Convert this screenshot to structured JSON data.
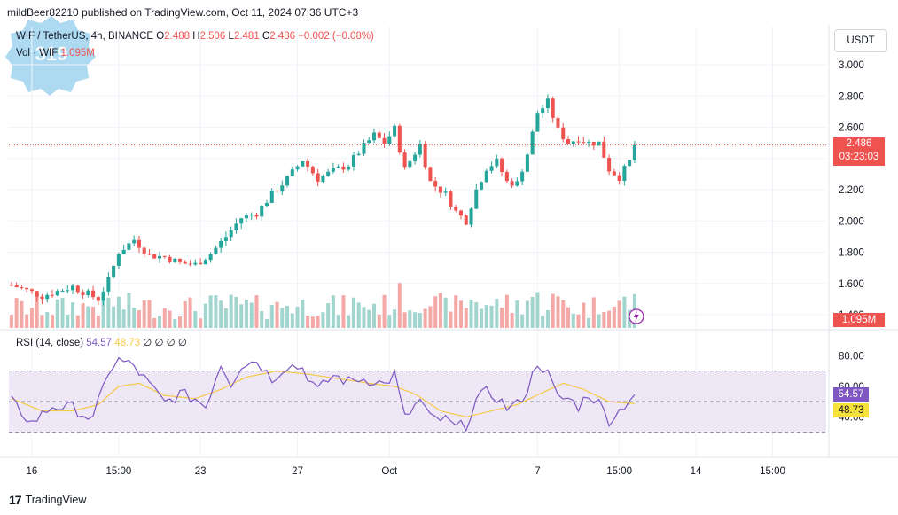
{
  "header": {
    "publisher": "mildBeer82210 published on TradingView.com, Oct 11, 2024 07:36 UTC+3"
  },
  "legend": {
    "symbol": "WIF / TetherUS, 4h, BINANCE",
    "open_label": "O",
    "open": "2.488",
    "high_label": "H",
    "high": "2.506",
    "low_label": "L",
    "low": "2.481",
    "close_label": "C",
    "close": "2.486",
    "change": "−0.002 (−0.08%)",
    "vol_label": "Vol · WIF",
    "vol_value": "1.095M"
  },
  "currency_button": "USDT",
  "price_tags": {
    "last_price": "2.486",
    "countdown": "03:23:03",
    "volume": "1.095M"
  },
  "rsi_legend": {
    "name": "RSI (14, close)",
    "rsi": "54.57",
    "ma": "48.73",
    "extras": "∅ ∅ ∅ ∅"
  },
  "rsi_tags": {
    "rsi": "54.57",
    "ma": "48.73"
  },
  "brand": {
    "logo": "17",
    "name": "TradingView"
  },
  "colors": {
    "up": "#26a69a",
    "down": "#ef5350",
    "rsi_line": "#7e57c2",
    "rsi_ma": "#f7c948",
    "rsi_band": "#ede7f6",
    "vol_up": "#a3d5cf",
    "vol_down": "#f4a9a6"
  },
  "chart_data": {
    "type": "candlestick",
    "symbol": "WIF / TetherUS",
    "interval": "4h",
    "y_ticks": [
      "3.000",
      "2.800",
      "2.600",
      "2.400",
      "2.200",
      "2.000",
      "1.800",
      "1.600",
      "1.400"
    ],
    "ylim": [
      1.4,
      3.0
    ],
    "x_ticks": [
      {
        "label": "16",
        "bar": 4
      },
      {
        "label": "15:00",
        "bar": 21
      },
      {
        "label": "23",
        "bar": 37
      },
      {
        "label": "27",
        "bar": 56
      },
      {
        "label": "Oct",
        "bar": 74
      },
      {
        "label": "7",
        "bar": 103
      },
      {
        "label": "15:00",
        "bar": 119
      },
      {
        "label": "14",
        "bar": 134
      },
      {
        "label": "15:00",
        "bar": 149
      }
    ],
    "close_waypoints": [
      [
        0,
        1.59
      ],
      [
        6,
        1.52
      ],
      [
        12,
        1.58
      ],
      [
        17,
        1.5
      ],
      [
        19,
        1.62
      ],
      [
        21,
        1.8
      ],
      [
        24,
        1.88
      ],
      [
        27,
        1.78
      ],
      [
        30,
        1.77
      ],
      [
        33,
        1.73
      ],
      [
        36,
        1.72
      ],
      [
        39,
        1.79
      ],
      [
        42,
        1.9
      ],
      [
        45,
        2.02
      ],
      [
        48,
        2.05
      ],
      [
        51,
        2.17
      ],
      [
        54,
        2.27
      ],
      [
        57,
        2.39
      ],
      [
        60,
        2.27
      ],
      [
        63,
        2.32
      ],
      [
        66,
        2.36
      ],
      [
        68,
        2.44
      ],
      [
        71,
        2.55
      ],
      [
        73,
        2.5
      ],
      [
        75,
        2.59
      ],
      [
        77,
        2.33
      ],
      [
        80,
        2.49
      ],
      [
        82,
        2.25
      ],
      [
        85,
        2.17
      ],
      [
        87,
        2.06
      ],
      [
        89,
        2.0
      ],
      [
        91,
        2.2
      ],
      [
        93,
        2.34
      ],
      [
        95,
        2.38
      ],
      [
        97,
        2.25
      ],
      [
        99,
        2.24
      ],
      [
        101,
        2.43
      ],
      [
        103,
        2.69
      ],
      [
        105,
        2.76
      ],
      [
        107,
        2.58
      ],
      [
        109,
        2.5
      ],
      [
        111,
        2.53
      ],
      [
        113,
        2.5
      ],
      [
        115,
        2.5
      ],
      [
        117,
        2.33
      ],
      [
        119,
        2.28
      ],
      [
        121,
        2.38
      ],
      [
        122,
        2.486
      ]
    ],
    "last_close": 2.486,
    "volume": {
      "last": "1.095M"
    },
    "rsi": {
      "ylim": [
        20,
        90
      ],
      "y_ticks": [
        "80.00",
        "60.00",
        "40.00"
      ],
      "bands": [
        70,
        50,
        30
      ],
      "rsi_waypoints": [
        [
          0,
          50
        ],
        [
          4,
          36
        ],
        [
          8,
          47
        ],
        [
          12,
          46
        ],
        [
          16,
          38
        ],
        [
          19,
          70
        ],
        [
          21,
          77
        ],
        [
          24,
          73
        ],
        [
          27,
          61
        ],
        [
          30,
          49
        ],
        [
          33,
          55
        ],
        [
          36,
          52
        ],
        [
          38,
          47
        ],
        [
          41,
          75
        ],
        [
          43,
          62
        ],
        [
          45,
          74
        ],
        [
          48,
          77
        ],
        [
          51,
          65
        ],
        [
          54,
          74
        ],
        [
          57,
          72
        ],
        [
          60,
          57
        ],
        [
          63,
          67
        ],
        [
          66,
          63
        ],
        [
          68,
          65
        ],
        [
          71,
          64
        ],
        [
          73,
          61
        ],
        [
          75,
          68
        ],
        [
          77,
          39
        ],
        [
          80,
          51
        ],
        [
          82,
          39
        ],
        [
          85,
          38
        ],
        [
          87,
          33
        ],
        [
          89,
          35
        ],
        [
          91,
          51
        ],
        [
          93,
          56
        ],
        [
          95,
          53
        ],
        [
          97,
          46
        ],
        [
          99,
          48
        ],
        [
          101,
          58
        ],
        [
          103,
          76
        ],
        [
          105,
          68
        ],
        [
          107,
          52
        ],
        [
          109,
          52
        ],
        [
          111,
          47
        ],
        [
          113,
          55
        ],
        [
          115,
          49
        ],
        [
          117,
          38
        ],
        [
          119,
          44
        ],
        [
          121,
          52
        ],
        [
          122,
          54.57
        ]
      ],
      "ma_waypoints": [
        [
          0,
          52
        ],
        [
          6,
          44
        ],
        [
          12,
          44
        ],
        [
          17,
          48
        ],
        [
          21,
          60
        ],
        [
          25,
          62
        ],
        [
          30,
          54
        ],
        [
          36,
          52
        ],
        [
          41,
          58
        ],
        [
          46,
          66
        ],
        [
          52,
          70
        ],
        [
          58,
          68
        ],
        [
          64,
          65
        ],
        [
          70,
          62
        ],
        [
          75,
          60
        ],
        [
          79,
          55
        ],
        [
          84,
          44
        ],
        [
          89,
          40
        ],
        [
          94,
          44
        ],
        [
          99,
          48
        ],
        [
          104,
          56
        ],
        [
          108,
          62
        ],
        [
          112,
          58
        ],
        [
          117,
          50
        ],
        [
          122,
          48.73
        ]
      ]
    }
  }
}
